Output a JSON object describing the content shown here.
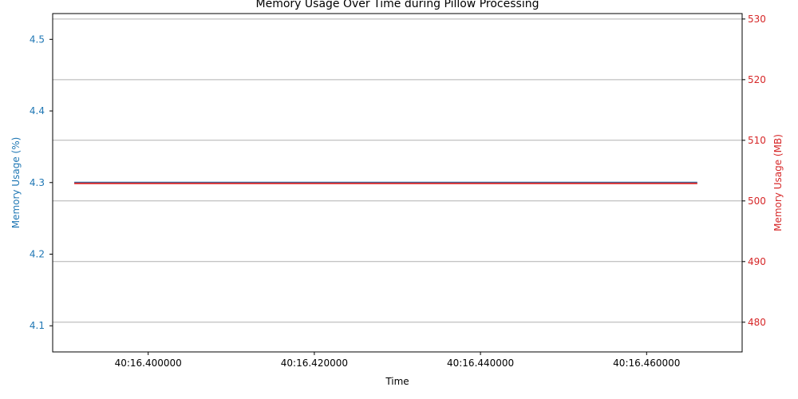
{
  "chart_data": {
    "type": "line",
    "title": "Memory Usage Over Time during Pillow Processing",
    "xlabel": "Time",
    "ylabel_left": "Memory Usage (%)",
    "ylabel_right": "Memory Usage (MB)",
    "x_ticks": [
      "40:16.400000",
      "40:16.420000",
      "40:16.440000",
      "40:16.460000"
    ],
    "x_tick_values": [
      0.4,
      0.42,
      0.44,
      0.46
    ],
    "xlim": [
      0.3885,
      0.4715
    ],
    "left_axis": {
      "ticks": [
        "4.1",
        "4.2",
        "4.3",
        "4.4",
        "4.5"
      ],
      "tick_values": [
        4.1,
        4.2,
        4.3,
        4.4,
        4.5
      ],
      "ylim": [
        4.0635,
        4.536
      ]
    },
    "right_axis": {
      "ticks": [
        "480",
        "490",
        "500",
        "510",
        "520",
        "530"
      ],
      "tick_values": [
        480,
        490,
        500,
        510,
        520,
        530
      ],
      "ylim": [
        475.1,
        530.9
      ]
    },
    "grid": "horizontal lines at right-axis ticks",
    "series": [
      {
        "axis": "left",
        "color": "#1f77b4",
        "x": [
          0.3911,
          0.4661
        ],
        "y": [
          4.3,
          4.3
        ]
      },
      {
        "axis": "right",
        "color": "#d62728",
        "x": [
          0.3911,
          0.4661
        ],
        "y": [
          502.9,
          502.9
        ]
      }
    ],
    "colors": {
      "left_axis": "#1f77b4",
      "right_axis": "#d62728",
      "grid": "#b0b0b0",
      "text": "#000000"
    }
  }
}
